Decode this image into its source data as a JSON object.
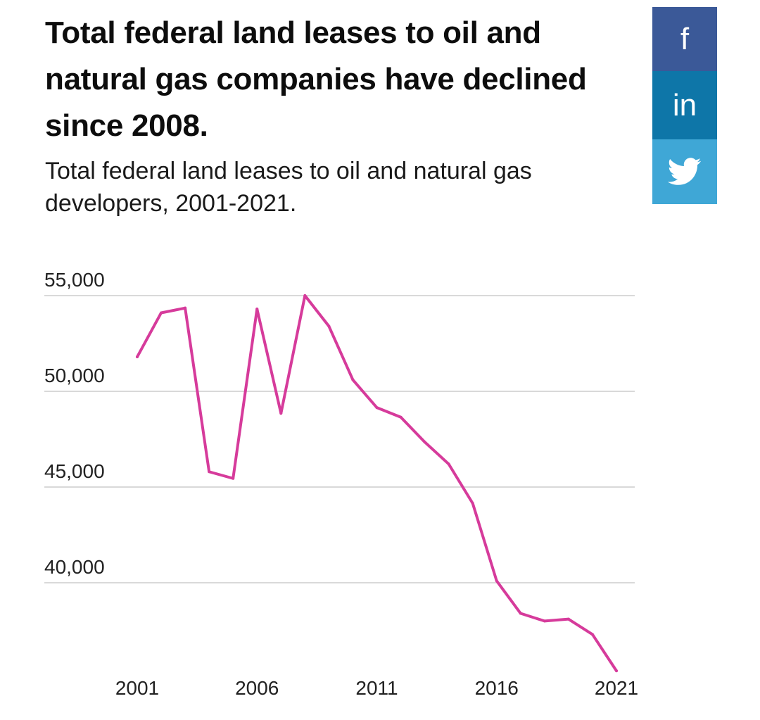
{
  "header": {
    "title": "Total federal land leases to oil and natural gas companies have declined since 2008.",
    "subtitle": "Total federal land leases to oil and natural gas developers, 2001-2021."
  },
  "share": {
    "facebook_icon": "facebook-icon",
    "facebook_label": "f",
    "linkedin_icon": "linkedin-icon",
    "linkedin_label": "in",
    "twitter_icon": "twitter-icon"
  },
  "colors": {
    "line": "#d63b9b",
    "grid": "#d9d9d9",
    "facebook": "#3b5998",
    "linkedin": "#0e76a8",
    "twitter": "#3fa7d6"
  },
  "chart_data": {
    "type": "line",
    "title": "Total federal land leases to oil and natural gas developers, 2001-2021.",
    "xlabel": "",
    "ylabel": "",
    "x": [
      2001,
      2002,
      2003,
      2004,
      2005,
      2006,
      2007,
      2008,
      2009,
      2010,
      2011,
      2012,
      2013,
      2014,
      2015,
      2016,
      2017,
      2018,
      2019,
      2020,
      2021
    ],
    "series": [
      {
        "values": [
          51800,
          54100,
          54350,
          45800,
          45450,
          54300,
          48850,
          55000,
          53400,
          50600,
          49150,
          48650,
          47350,
          46200,
          44150,
          40100,
          38400,
          38000,
          38100,
          37300,
          35400
        ]
      }
    ],
    "xticks": [
      "2001",
      "2006",
      "2011",
      "2016",
      "2021"
    ],
    "yticks": [
      "55,000",
      "50,000",
      "45,000",
      "40,000"
    ],
    "ytick_values": [
      55000,
      50000,
      45000,
      40000
    ],
    "ylim": [
      35000,
      56000
    ],
    "grid": true
  }
}
